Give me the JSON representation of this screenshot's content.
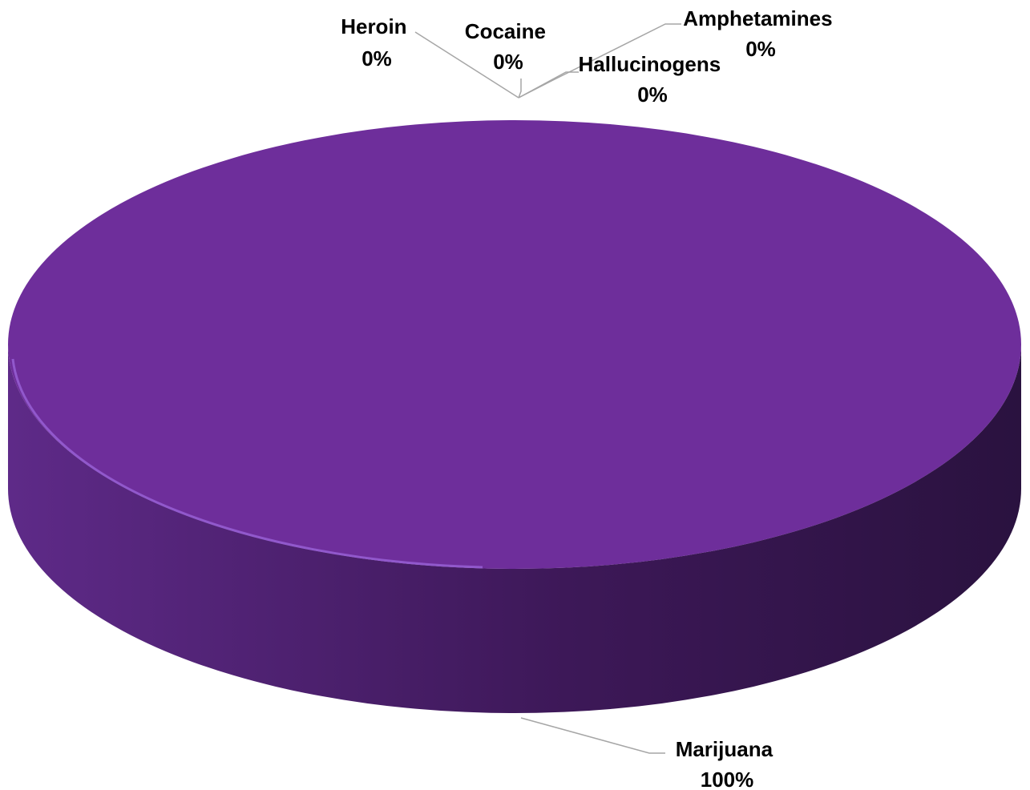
{
  "chart_data": {
    "type": "pie",
    "style": "3d",
    "legend": "none",
    "slices": [
      {
        "name": "Heroin",
        "value": 0,
        "label": "0%"
      },
      {
        "name": "Cocaine",
        "value": 0,
        "label": "0%"
      },
      {
        "name": "Amphetamines",
        "value": 0,
        "label": "0%"
      },
      {
        "name": "Hallucinogens",
        "value": 0,
        "label": "0%"
      },
      {
        "name": "Marijuana",
        "value": 100,
        "label": "100%"
      }
    ],
    "colors": {
      "top": "#6e2e9b",
      "side_light": "#5e2a88",
      "side_dark": "#2a123f",
      "rim_highlight": "#9a63d8",
      "leader": "#a6a6a6"
    }
  }
}
